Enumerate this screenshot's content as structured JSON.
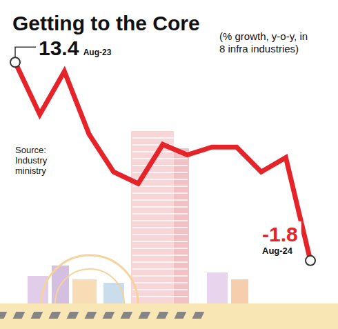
{
  "chart_data": {
    "type": "line",
    "title": "Getting to the Core",
    "subtitle": "(% growth, y-o-y, in 8 infra industries)",
    "annotations": [
      "Source: Industry ministry"
    ],
    "categories": [
      "Aug-23",
      null,
      null,
      null,
      null,
      null,
      null,
      null,
      null,
      null,
      null,
      null,
      "Aug-24"
    ],
    "values": [
      13.4,
      9.4,
      12.7,
      7.9,
      5.0,
      4.1,
      7.1,
      6.3,
      6.9,
      6.9,
      5.0,
      6.1,
      -1.8
    ],
    "color": "#e52329",
    "ylim": [
      -3.5,
      15
    ],
    "data_labels": true,
    "tick_labels": false,
    "grid": false
  }
}
